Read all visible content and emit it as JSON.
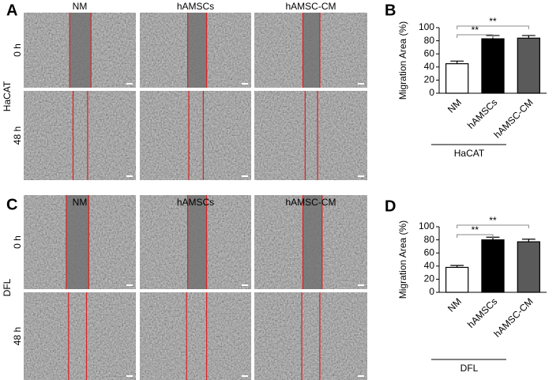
{
  "panel_labels": [
    "A",
    "B",
    "C",
    "D"
  ],
  "images": [
    {
      "cell_line": "HaCAT",
      "columns": [
        "NM",
        "hAMSCs",
        "hAMSC-CM"
      ],
      "rows": [
        "0 h",
        "48 h"
      ]
    },
    {
      "cell_line": "DFL",
      "columns": [
        "NM",
        "hAMSCs",
        "hAMSC-CM"
      ],
      "rows": [
        "0 h",
        "48 h"
      ]
    }
  ],
  "chart_data": [
    {
      "type": "bar",
      "ylabel": "Migration Area (%)",
      "categories": [
        "NM",
        "hAMSCs",
        "hAMSC-CM"
      ],
      "values": [
        45,
        83,
        84
      ],
      "errors": [
        4,
        5,
        4
      ],
      "colors": [
        "#ffffff",
        "#000000",
        "#5a5a5a"
      ],
      "group_label": "HaCAT",
      "significance_labels": [
        "**",
        "**"
      ],
      "ylim": [
        0,
        100
      ],
      "yticks": [
        0,
        20,
        40,
        60,
        80,
        100
      ]
    },
    {
      "type": "bar",
      "ylabel": "Migration Area (%)",
      "categories": [
        "NM",
        "hAMSCs",
        "hAMSC-CM"
      ],
      "values": [
        38,
        80,
        77
      ],
      "errors": [
        3,
        4,
        4
      ],
      "colors": [
        "#ffffff",
        "#000000",
        "#5a5a5a"
      ],
      "group_label": "DFL",
      "significance_labels": [
        "**",
        "**"
      ],
      "ylim": [
        0,
        100
      ],
      "yticks": [
        0,
        20,
        40,
        60,
        80,
        100
      ]
    }
  ]
}
